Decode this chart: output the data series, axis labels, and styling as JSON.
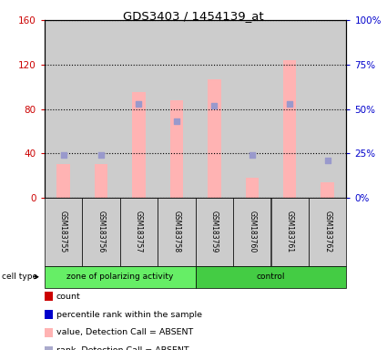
{
  "title": "GDS3403 / 1454139_at",
  "samples": [
    "GSM183755",
    "GSM183756",
    "GSM183757",
    "GSM183758",
    "GSM183759",
    "GSM183760",
    "GSM183761",
    "GSM183762"
  ],
  "pink_bars": [
    30,
    30,
    95,
    88,
    107,
    18,
    124,
    14
  ],
  "blue_squares_pct": [
    24,
    24,
    53,
    43,
    52,
    24,
    53,
    21
  ],
  "left_ylim": [
    0,
    160
  ],
  "right_ylim": [
    0,
    100
  ],
  "left_yticks": [
    0,
    40,
    80,
    120,
    160
  ],
  "right_yticks": [
    0,
    25,
    50,
    75,
    100
  ],
  "right_yticklabels": [
    "0%",
    "25%",
    "50%",
    "75%",
    "100%"
  ],
  "left_color": "#cc0000",
  "right_color": "#0000cc",
  "pink_bar_color": "#ffb3b3",
  "blue_sq_color": "#9999cc",
  "group1_label": "zone of polarizing activity",
  "group2_label": "control",
  "group1_color": "#66ee66",
  "group2_color": "#44cc44",
  "sample_row_color": "#cccccc",
  "plot_bg": "#cccccc",
  "bar_width": 0.35
}
